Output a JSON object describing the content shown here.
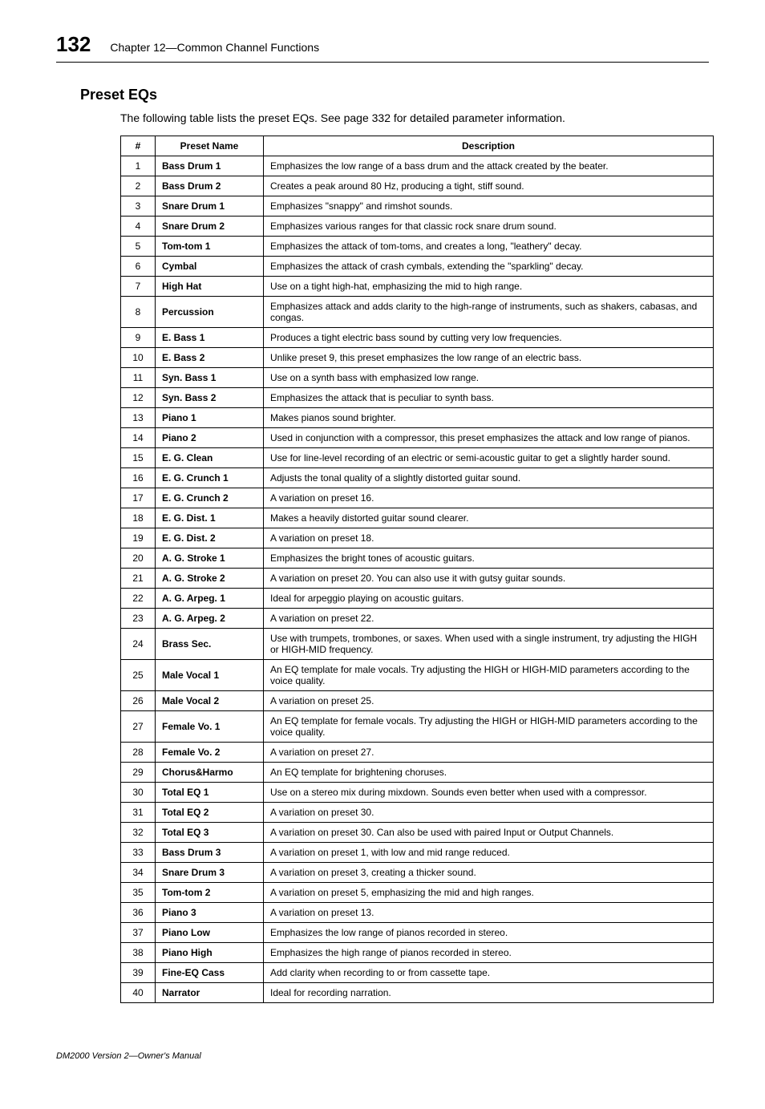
{
  "header": {
    "page_number": "132",
    "chapter_title": "Chapter 12—Common Channel Functions"
  },
  "section": {
    "title": "Preset EQs",
    "intro": "The following table lists the preset EQs. See page 332 for detailed parameter information."
  },
  "table": {
    "columns": [
      "#",
      "Preset Name",
      "Description"
    ],
    "header_bg": "#ffffff",
    "border_color": "#000000",
    "rows": [
      {
        "n": "1",
        "name": "Bass Drum 1",
        "desc": "Emphasizes the low range of a bass drum and the attack created by the beater."
      },
      {
        "n": "2",
        "name": "Bass Drum 2",
        "desc": "Creates a peak around 80 Hz, producing a tight, stiff sound."
      },
      {
        "n": "3",
        "name": "Snare Drum 1",
        "desc": "Emphasizes \"snappy\" and rimshot sounds."
      },
      {
        "n": "4",
        "name": "Snare Drum 2",
        "desc": "Emphasizes various ranges for that classic rock snare drum sound."
      },
      {
        "n": "5",
        "name": "Tom-tom 1",
        "desc": "Emphasizes the attack of tom-toms, and creates a long, \"leathery\" decay."
      },
      {
        "n": "6",
        "name": "Cymbal",
        "desc": "Emphasizes the attack of crash cymbals, extending the \"sparkling\" decay."
      },
      {
        "n": "7",
        "name": "High Hat",
        "desc": "Use on a tight high-hat, emphasizing the mid to high range."
      },
      {
        "n": "8",
        "name": "Percussion",
        "desc": "Emphasizes attack and adds clarity to the high-range of instruments, such as shakers, cabasas, and congas."
      },
      {
        "n": "9",
        "name": "E. Bass 1",
        "desc": "Produces a tight electric bass sound by cutting very low frequencies."
      },
      {
        "n": "10",
        "name": "E. Bass 2",
        "desc": "Unlike preset 9, this preset emphasizes the low range of an electric bass."
      },
      {
        "n": "11",
        "name": "Syn. Bass 1",
        "desc": "Use on a synth bass with emphasized low range."
      },
      {
        "n": "12",
        "name": "Syn. Bass 2",
        "desc": "Emphasizes the attack that is peculiar to synth bass."
      },
      {
        "n": "13",
        "name": "Piano 1",
        "desc": "Makes pianos sound brighter."
      },
      {
        "n": "14",
        "name": "Piano 2",
        "desc": "Used in conjunction with a compressor, this preset emphasizes the attack and low range of pianos."
      },
      {
        "n": "15",
        "name": "E. G. Clean",
        "desc": "Use for line-level recording of an electric or semi-acoustic guitar to get a slightly harder sound."
      },
      {
        "n": "16",
        "name": "E. G. Crunch 1",
        "desc": "Adjusts the tonal quality of a slightly distorted guitar sound."
      },
      {
        "n": "17",
        "name": "E. G. Crunch 2",
        "desc": "A variation on preset 16."
      },
      {
        "n": "18",
        "name": "E. G. Dist. 1",
        "desc": "Makes a heavily distorted guitar sound clearer."
      },
      {
        "n": "19",
        "name": "E. G. Dist. 2",
        "desc": "A variation on preset 18."
      },
      {
        "n": "20",
        "name": "A. G. Stroke 1",
        "desc": "Emphasizes the bright tones of acoustic guitars."
      },
      {
        "n": "21",
        "name": "A. G. Stroke 2",
        "desc": "A variation on preset 20. You can also use it with gutsy guitar sounds."
      },
      {
        "n": "22",
        "name": "A. G. Arpeg. 1",
        "desc": "Ideal for arpeggio playing on acoustic guitars."
      },
      {
        "n": "23",
        "name": "A. G. Arpeg. 2",
        "desc": "A variation on preset 22."
      },
      {
        "n": "24",
        "name": "Brass Sec.",
        "desc": "Use with trumpets, trombones, or saxes. When used with a single instrument, try adjusting the HIGH or HIGH-MID frequency."
      },
      {
        "n": "25",
        "name": "Male Vocal 1",
        "desc": "An EQ template for male vocals. Try adjusting the HIGH or HIGH-MID parameters according to the voice quality."
      },
      {
        "n": "26",
        "name": "Male Vocal 2",
        "desc": "A variation on preset 25."
      },
      {
        "n": "27",
        "name": "Female Vo. 1",
        "desc": "An EQ template for female vocals. Try adjusting the HIGH or HIGH-MID parameters according to the voice quality."
      },
      {
        "n": "28",
        "name": "Female Vo. 2",
        "desc": "A variation on preset 27."
      },
      {
        "n": "29",
        "name": "Chorus&Harmo",
        "desc": "An EQ template for brightening choruses."
      },
      {
        "n": "30",
        "name": "Total EQ 1",
        "desc": "Use on a stereo mix during mixdown. Sounds even better when used with a compressor."
      },
      {
        "n": "31",
        "name": "Total EQ 2",
        "desc": "A variation on preset 30."
      },
      {
        "n": "32",
        "name": "Total EQ 3",
        "desc": "A variation on preset 30. Can also be used with paired Input or Output Channels."
      },
      {
        "n": "33",
        "name": "Bass Drum 3",
        "desc": "A variation on preset 1, with low and mid range reduced."
      },
      {
        "n": "34",
        "name": "Snare Drum 3",
        "desc": "A variation on preset 3, creating a thicker sound."
      },
      {
        "n": "35",
        "name": "Tom-tom 2",
        "desc": "A variation on preset 5, emphasizing the mid and high ranges."
      },
      {
        "n": "36",
        "name": "Piano 3",
        "desc": "A variation on preset 13."
      },
      {
        "n": "37",
        "name": "Piano Low",
        "desc": "Emphasizes the low range of pianos recorded in stereo."
      },
      {
        "n": "38",
        "name": "Piano High",
        "desc": "Emphasizes the high range of pianos recorded in stereo."
      },
      {
        "n": "39",
        "name": "Fine-EQ Cass",
        "desc": "Add clarity when recording to or from cassette tape."
      },
      {
        "n": "40",
        "name": "Narrator",
        "desc": "Ideal for recording narration."
      }
    ]
  },
  "footer": {
    "text": "DM2000 Version 2—Owner's Manual"
  }
}
